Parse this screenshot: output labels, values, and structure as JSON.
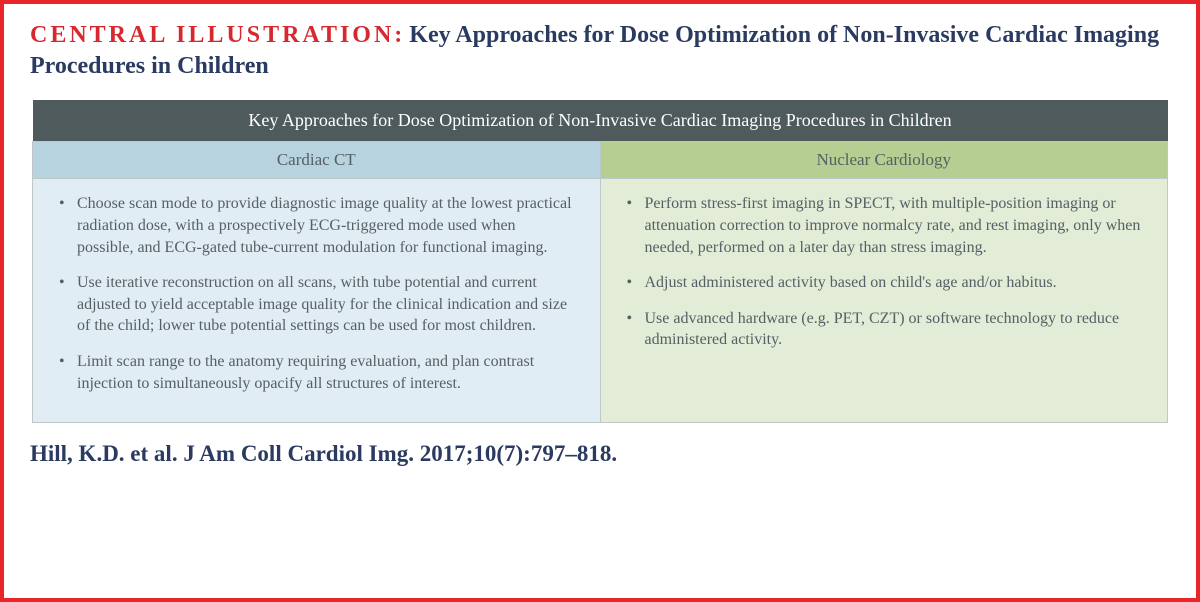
{
  "colors": {
    "frame_border": "#e7252b",
    "label_red": "#d7282f",
    "title_navy": "#2a3a60",
    "header_bg": "#4e5a5b",
    "header_text": "#ffffff",
    "ct_header_bg": "#b7d3e0",
    "ct_body_bg": "#e0edf4",
    "nc_header_bg": "#b5ce91",
    "nc_body_bg": "#e2ecd7",
    "body_text": "#556065",
    "border": "#bfc7c9",
    "citation_text": "#2a3a60",
    "font_size_header": 24,
    "font_size_table_title": 18,
    "font_size_subhead": 17,
    "font_size_body": 16,
    "font_size_citation": 23
  },
  "header": {
    "label": "CENTRAL ILLUSTRATION:",
    "title": "Key Approaches for Dose Optimization of Non-Invasive Cardiac Imaging Procedures in Children"
  },
  "table": {
    "title": "Key Approaches for Dose Optimization of Non-Invasive Cardiac Imaging Procedures in Children",
    "columns": {
      "ct": {
        "label": "Cardiac CT",
        "bullets": [
          "Choose scan mode to provide diagnostic image quality at the lowest practical radiation dose, with a prospectively ECG-triggered mode used when possible, and ECG-gated tube-current modulation for functional imaging.",
          "Use iterative reconstruction on all scans, with tube potential and current adjusted to yield acceptable image quality for the clinical indication and size of the child; lower tube potential settings can be used for most children.",
          "Limit scan range to the anatomy requiring evaluation, and plan contrast injection to simultaneously opacify all structures of interest."
        ]
      },
      "nc": {
        "label": "Nuclear Cardiology",
        "bullets": [
          "Perform stress-first imaging in SPECT, with multiple-position imaging or attenuation correction to improve normalcy rate, and rest imaging, only when needed, performed on a later day than stress imaging.",
          "Adjust administered activity based on child's age and/or habitus.",
          "Use advanced hardware (e.g. PET, CZT) or software technology to reduce administered activity."
        ]
      }
    }
  },
  "citation": "Hill, K.D. et al. J Am Coll Cardiol Img. 2017;10(7):797–818."
}
